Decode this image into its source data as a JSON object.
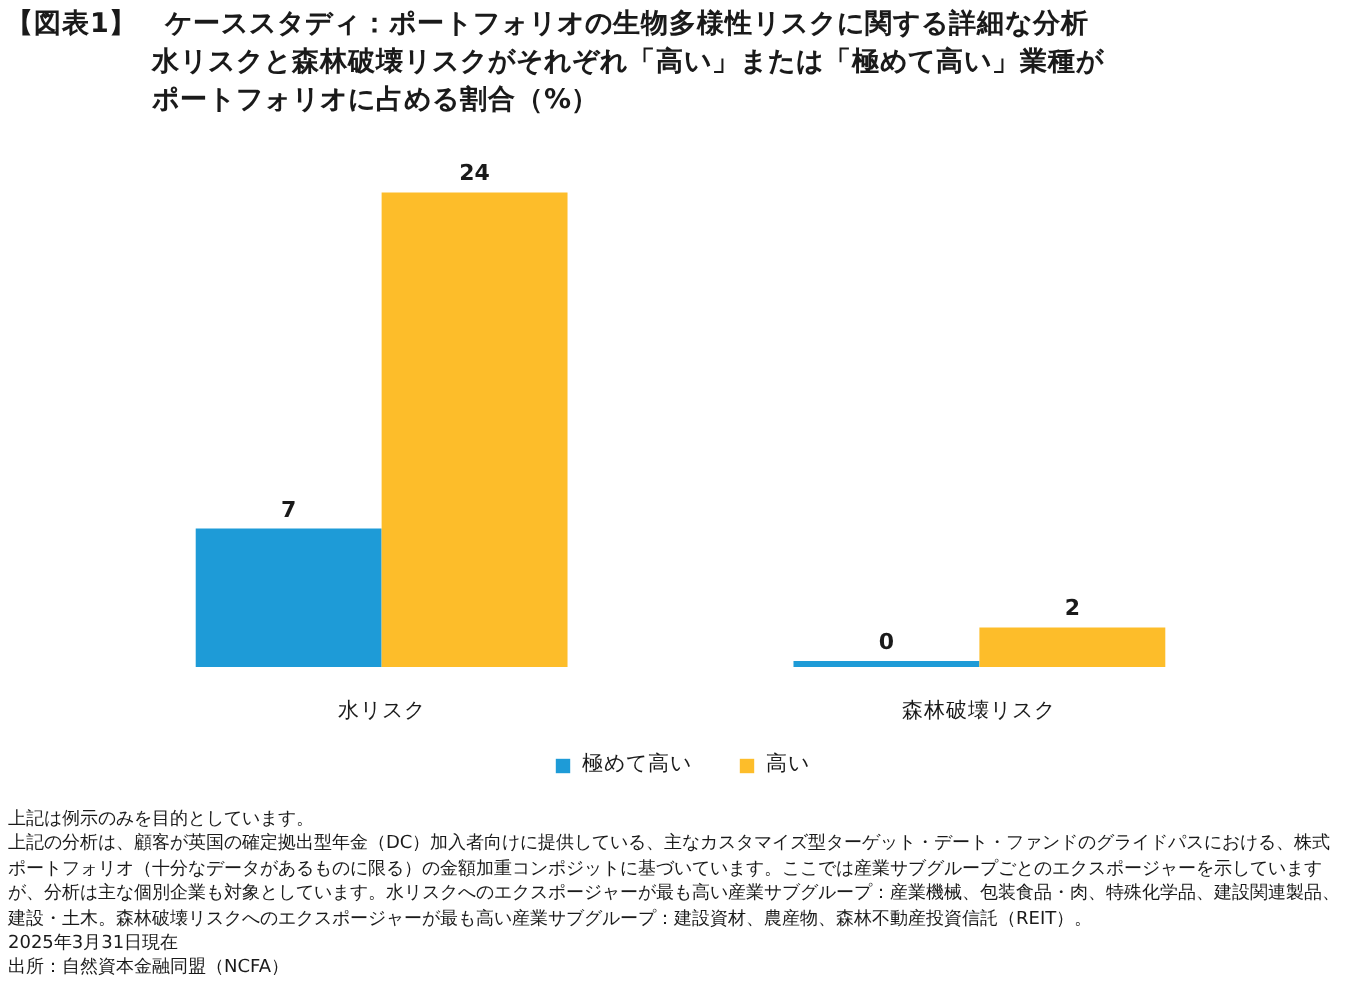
{
  "chart_data": {
    "type": "bar",
    "title": "【図表1】　ケーススタディ：ポートフォリオの生物多様性リスクに関する詳細な分析",
    "subtitle": "水リスクと森林破壊リスクがそれぞれ「高い」または「極めて高い」業種がポートフォリオに占める割合（%）",
    "categories": [
      "水リスク",
      "森林破壊リスク"
    ],
    "series": [
      {
        "name": "極めて高い",
        "color": "#1e9bd7",
        "values": [
          7,
          0.3
        ],
        "value_labels": [
          "7",
          "0"
        ]
      },
      {
        "name": "高い",
        "color": "#fdbd2a",
        "values": [
          24,
          2
        ],
        "value_labels": [
          "24",
          "2"
        ]
      }
    ],
    "legend": "bottom",
    "annotations": [
      "上記は例示のみを目的としています。",
      "上記の分析は、顧客が英国の確定拠出型年金（DC）加入者向けに提供している、主なカスタマイズ型ターゲット・デート・ファンドのグライドパスにおける、株式ポートフォリオ（十分なデータがあるものに限る）の金額加重コンポジットに基づいています。ここでは産業サブグループごとのエクスポージャーを示していますが、分析は主な個別企業も対象としています。水リスクへのエクスポージャーが最も高い産業サブグループ：産業機械、包装食品・肉、特殊化学品、建設関連製品、建設・土木。森林破壊リスクへのエクスポージャーが最も高い産業サブグループ：建設資材、農産物、森林不動産投資信託（REIT）。",
      "2025年3月31日現在",
      "出所：自然資本金融同盟（NCFA）"
    ]
  }
}
